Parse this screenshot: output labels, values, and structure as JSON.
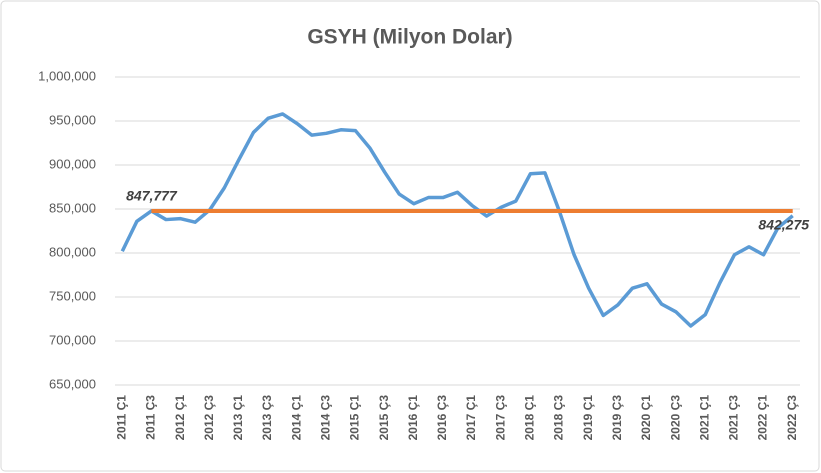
{
  "chart_data": {
    "type": "line",
    "title": "GSYH (Milyon Dolar)",
    "categories": [
      "2011 Ç1",
      null,
      "2011 Ç3",
      null,
      "2012 Ç1",
      null,
      "2012 Ç3",
      null,
      "2013 Ç1",
      null,
      "2013 Ç3",
      null,
      "2014 Ç1",
      null,
      "2014 Ç3",
      null,
      "2015 Ç1",
      null,
      "2015 Ç3",
      null,
      "2016 Ç1",
      null,
      "2016 Ç3",
      null,
      "2017 Ç1",
      null,
      "2017 Ç3",
      null,
      "2018 Ç1",
      null,
      "2018 Ç3",
      null,
      "2019 Ç1",
      null,
      "2019 Ç3",
      null,
      "2020 Ç1",
      null,
      "2020 Ç3",
      null,
      "2021 Ç1",
      null,
      "2021 Ç3",
      null,
      "2022 Ç1",
      null,
      "2022 Ç3"
    ],
    "series": [
      {
        "color": "#5b9bd5",
        "values": [
          802000,
          836000,
          847777,
          838000,
          839000,
          835000,
          849000,
          874000,
          906000,
          937000,
          953000,
          958000,
          947000,
          934000,
          936000,
          940000,
          939000,
          919000,
          892000,
          867000,
          856000,
          863000,
          863000,
          869000,
          854000,
          842000,
          852000,
          859000,
          890000,
          891000,
          847000,
          798000,
          760000,
          729000,
          741000,
          760000,
          765000,
          742000,
          733000,
          717000,
          730000,
          766000,
          798000,
          807000,
          798000,
          829000,
          842275
        ],
        "value_labels": [
          null,
          null,
          "847,777",
          null,
          null,
          null,
          null,
          null,
          null,
          null,
          null,
          null,
          null,
          null,
          null,
          null,
          null,
          null,
          null,
          null,
          null,
          null,
          null,
          null,
          null,
          null,
          null,
          null,
          null,
          null,
          null,
          null,
          null,
          null,
          null,
          null,
          null,
          null,
          null,
          null,
          null,
          null,
          null,
          null,
          null,
          null,
          "842,275"
        ]
      },
      {
        "color": "#ed7d31",
        "values": [
          null,
          null,
          847777,
          847777,
          847777,
          847777,
          847777,
          847777,
          847777,
          847777,
          847777,
          847777,
          847777,
          847777,
          847777,
          847777,
          847777,
          847777,
          847777,
          847777,
          847777,
          847777,
          847777,
          847777,
          847777,
          847777,
          847777,
          847777,
          847777,
          847777,
          847777,
          847777,
          847777,
          847777,
          847777,
          847777,
          847777,
          847777,
          847777,
          847777,
          847777,
          847777,
          847777,
          847777,
          847777,
          847777,
          847777
        ]
      }
    ],
    "ylim": [
      650000,
      1000000
    ],
    "yticks": [
      {
        "value": 650000,
        "label": "650,000"
      },
      {
        "value": 700000,
        "label": "700,000"
      },
      {
        "value": 750000,
        "label": "750,000"
      },
      {
        "value": 800000,
        "label": "800,000"
      },
      {
        "value": 850000,
        "label": "850,000"
      },
      {
        "value": 900000,
        "label": "900,000"
      },
      {
        "value": 950000,
        "label": "950,000"
      },
      {
        "value": 1000000,
        "label": "1,000,000"
      }
    ],
    "grid": true
  }
}
